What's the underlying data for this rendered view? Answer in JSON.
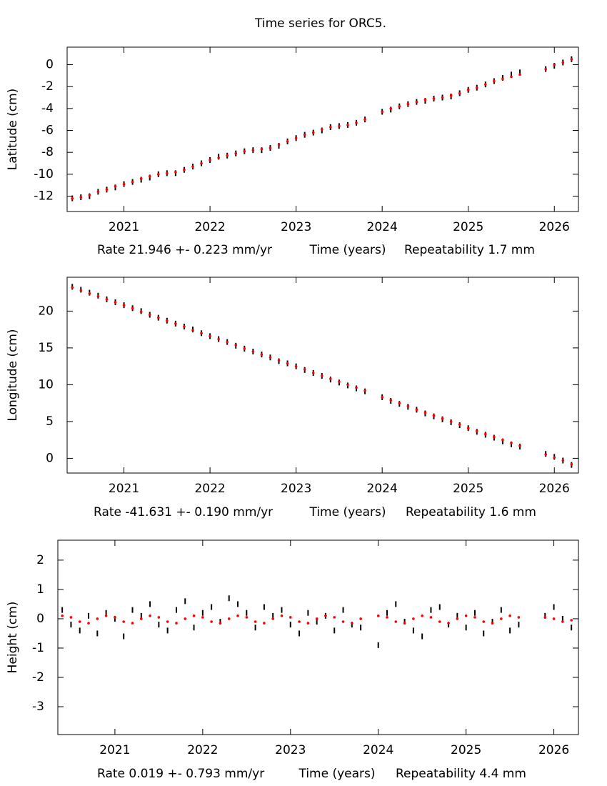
{
  "title": "Time series for ORC5.",
  "chart_data": [
    {
      "type": "scatter",
      "ylabel": "Latitude (cm)",
      "xlabel": "Time (years)",
      "rate_label": "Rate 21.946 +- 0.223 mm/yr",
      "repeatability_label": "Repeatability 1.7 mm",
      "xlim": [
        2020.34,
        2026.28
      ],
      "xticks": [
        2021,
        2022,
        2023,
        2024,
        2025,
        2026
      ],
      "ylim": [
        -13.4,
        1.6
      ],
      "yticks": [
        0,
        -2,
        -4,
        -6,
        -8,
        -10,
        -12
      ],
      "x": [
        2020.4,
        2020.5,
        2020.6,
        2020.7,
        2020.8,
        2020.9,
        2021.0,
        2021.1,
        2021.2,
        2021.3,
        2021.4,
        2021.5,
        2021.6,
        2021.7,
        2021.8,
        2021.9,
        2022.0,
        2022.1,
        2022.2,
        2022.3,
        2022.4,
        2022.5,
        2022.6,
        2022.7,
        2022.8,
        2022.9,
        2023.0,
        2023.1,
        2023.2,
        2023.3,
        2023.4,
        2023.5,
        2023.6,
        2023.7,
        2023.8,
        2024.0,
        2024.1,
        2024.2,
        2024.3,
        2024.4,
        2024.5,
        2024.6,
        2024.7,
        2024.8,
        2024.9,
        2025.0,
        2025.1,
        2025.2,
        2025.3,
        2025.4,
        2025.5,
        2025.6,
        2025.9,
        2026.0,
        2026.1,
        2026.2
      ],
      "series": [
        {
          "color": "#000000",
          "values": [
            -12.2,
            -12.1,
            -12.0,
            -11.6,
            -11.4,
            -11.2,
            -10.9,
            -10.7,
            -10.5,
            -10.3,
            -10.0,
            -9.9,
            -9.9,
            -9.6,
            -9.3,
            -9.0,
            -8.7,
            -8.4,
            -8.3,
            -8.1,
            -7.9,
            -7.8,
            -7.8,
            -7.6,
            -7.4,
            -7.0,
            -6.7,
            -6.4,
            -6.2,
            -6.0,
            -5.7,
            -5.6,
            -5.5,
            -5.3,
            -5.0,
            -4.3,
            -4.1,
            -3.8,
            -3.6,
            -3.4,
            -3.3,
            -3.1,
            -3.0,
            -2.9,
            -2.6,
            -2.3,
            -2.1,
            -1.8,
            -1.5,
            -1.2,
            -0.9,
            -0.7,
            -0.4,
            -0.1,
            0.2,
            0.5
          ]
        },
        {
          "color": "#ff0000",
          "values": [
            -12.2,
            -12.1,
            -11.9,
            -11.6,
            -11.4,
            -11.1,
            -10.9,
            -10.7,
            -10.4,
            -10.2,
            -10.0,
            -9.9,
            -9.8,
            -9.6,
            -9.3,
            -9.0,
            -8.7,
            -8.5,
            -8.3,
            -8.1,
            -7.9,
            -7.8,
            -7.7,
            -7.6,
            -7.3,
            -7.0,
            -6.7,
            -6.4,
            -6.2,
            -5.9,
            -5.7,
            -5.6,
            -5.5,
            -5.3,
            -5.0,
            -4.3,
            -4.0,
            -3.8,
            -3.6,
            -3.4,
            -3.2,
            -3.1,
            -3.0,
            -2.8,
            -2.6,
            -2.3,
            -2.1,
            -1.8,
            -1.5,
            -1.3,
            -1.1,
            -0.9,
            -0.4,
            0.0,
            0.2,
            0.5
          ]
        }
      ]
    },
    {
      "type": "scatter",
      "ylabel": "Longitude (cm)",
      "xlabel": "Time (years)",
      "rate_label": "Rate -41.631 +- 0.190 mm/yr",
      "repeatability_label": "Repeatability 1.6 mm",
      "xlim": [
        2020.34,
        2026.28
      ],
      "xticks": [
        2021,
        2022,
        2023,
        2024,
        2025,
        2026
      ],
      "ylim": [
        -2.0,
        24.6
      ],
      "yticks": [
        20,
        15,
        10,
        5,
        0
      ],
      "x": [
        2020.4,
        2020.5,
        2020.6,
        2020.7,
        2020.8,
        2020.9,
        2021.0,
        2021.1,
        2021.2,
        2021.3,
        2021.4,
        2021.5,
        2021.6,
        2021.7,
        2021.8,
        2021.9,
        2022.0,
        2022.1,
        2022.2,
        2022.3,
        2022.4,
        2022.5,
        2022.6,
        2022.7,
        2022.8,
        2022.9,
        2023.0,
        2023.1,
        2023.2,
        2023.3,
        2023.4,
        2023.5,
        2023.6,
        2023.7,
        2023.8,
        2024.0,
        2024.1,
        2024.2,
        2024.3,
        2024.4,
        2024.5,
        2024.6,
        2024.7,
        2024.8,
        2024.9,
        2025.0,
        2025.1,
        2025.2,
        2025.3,
        2025.4,
        2025.5,
        2025.6,
        2025.9,
        2026.0,
        2026.1,
        2026.2
      ],
      "series": [
        {
          "color": "#000000",
          "values": [
            23.3,
            22.9,
            22.5,
            22.1,
            21.6,
            21.2,
            20.8,
            20.4,
            20.0,
            19.5,
            19.1,
            18.7,
            18.3,
            17.9,
            17.5,
            17.0,
            16.6,
            16.2,
            15.8,
            15.3,
            14.9,
            14.5,
            14.1,
            13.7,
            13.2,
            12.9,
            12.5,
            12.0,
            11.6,
            11.2,
            10.7,
            10.3,
            9.9,
            9.5,
            9.1,
            8.3,
            7.8,
            7.4,
            7.0,
            6.6,
            6.1,
            5.7,
            5.3,
            4.9,
            4.5,
            4.1,
            3.6,
            3.2,
            2.8,
            2.3,
            1.9,
            1.6,
            0.6,
            0.2,
            -0.3,
            -0.9
          ]
        },
        {
          "color": "#ff0000",
          "values": [
            23.2,
            22.8,
            22.4,
            22.0,
            21.6,
            21.2,
            20.8,
            20.4,
            19.9,
            19.5,
            19.1,
            18.7,
            18.3,
            17.9,
            17.4,
            17.0,
            16.6,
            16.2,
            15.8,
            15.4,
            14.9,
            14.5,
            14.1,
            13.7,
            13.3,
            12.9,
            12.5,
            12.1,
            11.6,
            11.2,
            10.8,
            10.4,
            10.0,
            9.6,
            9.2,
            8.3,
            7.9,
            7.5,
            7.1,
            6.6,
            6.2,
            5.8,
            5.4,
            5.0,
            4.6,
            4.1,
            3.7,
            3.3,
            2.9,
            2.5,
            2.1,
            1.7,
            0.5,
            0.1,
            -0.3,
            -0.8
          ]
        }
      ]
    },
    {
      "type": "scatter",
      "ylabel": "Height (cm)",
      "xlabel": "Time (years)",
      "rate_label": "Rate 0.019 +- 0.793 mm/yr",
      "repeatability_label": "Repeatability 4.4 mm",
      "xlim": [
        2020.35,
        2026.28
      ],
      "xticks": [
        2021,
        2022,
        2023,
        2024,
        2025,
        2026
      ],
      "ylim": [
        -3.95,
        2.68
      ],
      "yticks": [
        2,
        1,
        0,
        -1,
        -2,
        -3
      ],
      "x": [
        2020.4,
        2020.5,
        2020.6,
        2020.7,
        2020.8,
        2020.9,
        2021.0,
        2021.1,
        2021.2,
        2021.3,
        2021.4,
        2021.5,
        2021.6,
        2021.7,
        2021.8,
        2021.9,
        2022.0,
        2022.1,
        2022.2,
        2022.3,
        2022.4,
        2022.5,
        2022.6,
        2022.7,
        2022.8,
        2022.9,
        2023.0,
        2023.1,
        2023.2,
        2023.3,
        2023.4,
        2023.5,
        2023.6,
        2023.7,
        2023.8,
        2024.0,
        2024.1,
        2024.2,
        2024.3,
        2024.4,
        2024.5,
        2024.6,
        2024.7,
        2024.8,
        2024.9,
        2025.0,
        2025.1,
        2025.2,
        2025.3,
        2025.4,
        2025.5,
        2025.6,
        2025.9,
        2026.0,
        2026.1,
        2026.2
      ],
      "series": [
        {
          "color": "#000000",
          "values": [
            0.3,
            -0.2,
            -0.4,
            0.1,
            -0.5,
            0.2,
            0.0,
            -0.6,
            0.3,
            0.1,
            0.5,
            -0.2,
            -0.4,
            0.3,
            0.6,
            -0.3,
            0.2,
            0.4,
            -0.1,
            0.7,
            0.5,
            0.2,
            -0.3,
            0.4,
            0.1,
            0.3,
            -0.2,
            -0.5,
            0.2,
            -0.1,
            0.1,
            -0.4,
            0.3,
            -0.2,
            -0.3,
            -0.9,
            0.2,
            0.5,
            -0.1,
            -0.4,
            -0.6,
            0.3,
            0.4,
            -0.2,
            0.1,
            -0.3,
            0.2,
            -0.5,
            -0.1,
            0.3,
            -0.4,
            -0.2,
            0.1,
            0.4,
            0.0,
            -0.3
          ]
        },
        {
          "color": "#ff0000",
          "values": [
            0.1,
            0.05,
            -0.1,
            -0.15,
            0.0,
            0.1,
            0.05,
            -0.1,
            -0.15,
            0.0,
            0.1,
            0.05,
            -0.1,
            -0.15,
            0.0,
            0.1,
            0.05,
            -0.1,
            -0.15,
            0.0,
            0.1,
            0.05,
            -0.1,
            -0.15,
            0.0,
            0.1,
            0.05,
            -0.1,
            -0.15,
            0.0,
            0.1,
            0.05,
            -0.1,
            -0.15,
            0.0,
            0.1,
            0.05,
            -0.1,
            -0.15,
            0.0,
            0.1,
            0.05,
            -0.1,
            -0.15,
            0.0,
            0.1,
            0.05,
            -0.1,
            -0.15,
            0.0,
            0.1,
            0.05,
            0.05,
            0.0,
            -0.1,
            -0.05
          ]
        }
      ]
    }
  ]
}
